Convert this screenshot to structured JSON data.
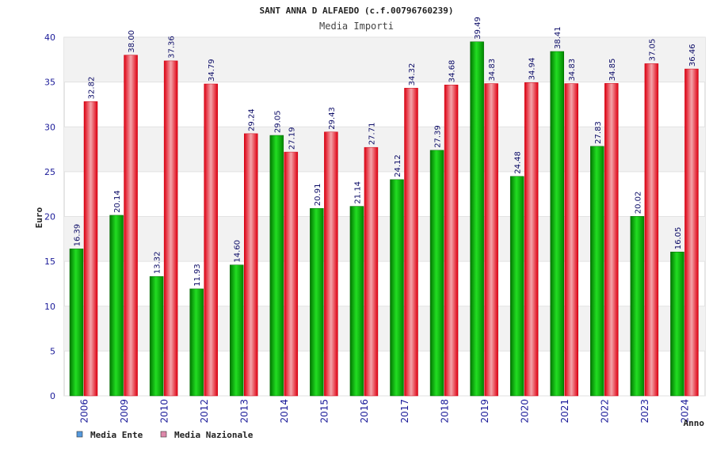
{
  "chart_data": {
    "type": "bar",
    "title": "SANT ANNA D ALFAEDO (c.f.00796760239)",
    "subtitle": "Media Importi",
    "xlabel": "Anno",
    "ylabel": "Euro",
    "ylim": [
      0,
      40
    ],
    "yticks": [
      0,
      5,
      10,
      15,
      20,
      25,
      30,
      35,
      40
    ],
    "grid": true,
    "legend_position": "bottom-left",
    "categories": [
      "2006",
      "2009",
      "2010",
      "2012",
      "2013",
      "2014",
      "2015",
      "2016",
      "2017",
      "2018",
      "2019",
      "2020",
      "2021",
      "2022",
      "2023",
      "2024"
    ],
    "series": [
      {
        "name": "Media Ente",
        "color": "#00bb00",
        "legend_color": "#5599dd",
        "values": [
          16.39,
          20.14,
          13.32,
          11.93,
          14.6,
          29.05,
          20.91,
          21.14,
          24.12,
          27.39,
          39.49,
          24.48,
          38.41,
          27.83,
          20.02,
          16.05
        ],
        "labels": [
          "16.39",
          "20.14",
          "13.32",
          "11.93",
          "14.60",
          "29.05",
          "20.91",
          "21.14",
          "24.12",
          "27.39",
          "39.49",
          "24.48",
          "38.41",
          "27.83",
          "20.02",
          "16.05"
        ]
      },
      {
        "name": "Media Nazionale",
        "color": "#ee1122",
        "legend_color": "#dd88aa",
        "values": [
          32.82,
          38.0,
          37.36,
          34.79,
          29.24,
          27.19,
          29.43,
          27.71,
          34.32,
          34.68,
          34.83,
          34.94,
          34.83,
          34.85,
          37.05,
          36.46
        ],
        "labels": [
          "32.82",
          "38.00",
          "37.36",
          "34.79",
          "29.24",
          "27.19",
          "29.43",
          "27.71",
          "34.32",
          "34.68",
          "34.83",
          "34.94",
          "34.83",
          "34.85",
          "37.05",
          "36.46"
        ]
      }
    ]
  }
}
